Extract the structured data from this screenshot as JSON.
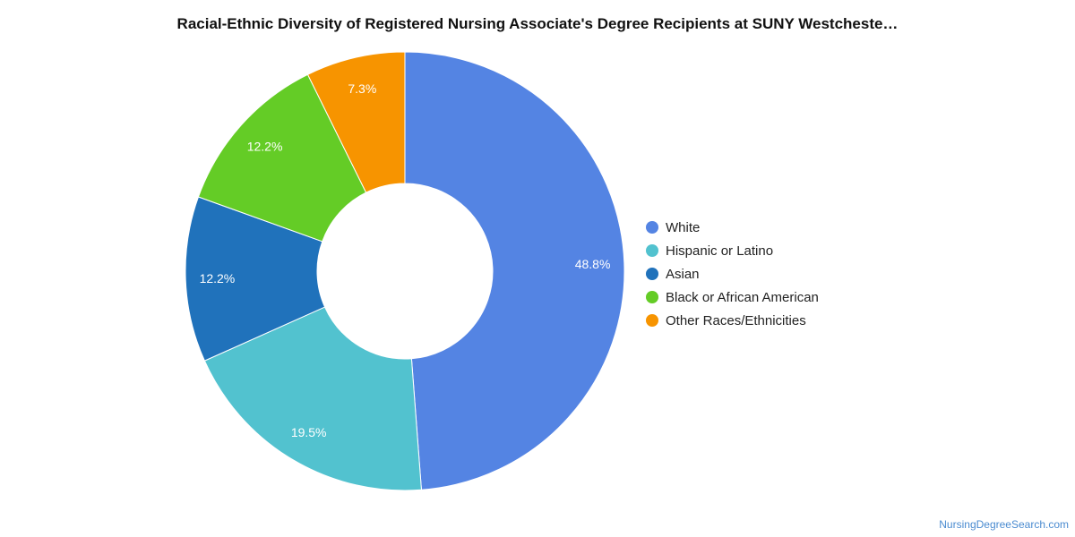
{
  "chart_data": {
    "type": "pie",
    "title": "Racial-Ethnic Diversity of Registered Nursing Associate's Degree Recipients at SUNY Westcheste…",
    "categories": [
      "White",
      "Hispanic or Latino",
      "Asian",
      "Black or African American",
      "Other Races/Ethnicities"
    ],
    "values": [
      48.8,
      19.5,
      12.2,
      12.2,
      7.3
    ],
    "labels": [
      "48.8%",
      "19.5%",
      "12.2%",
      "12.2%",
      "7.3%"
    ],
    "colors": [
      "#5484e3",
      "#52c2cf",
      "#2072bb",
      "#64cc26",
      "#f79400"
    ],
    "legend_placement": "right"
  },
  "footer": {
    "credit": "NursingDegreeSearch.com"
  }
}
